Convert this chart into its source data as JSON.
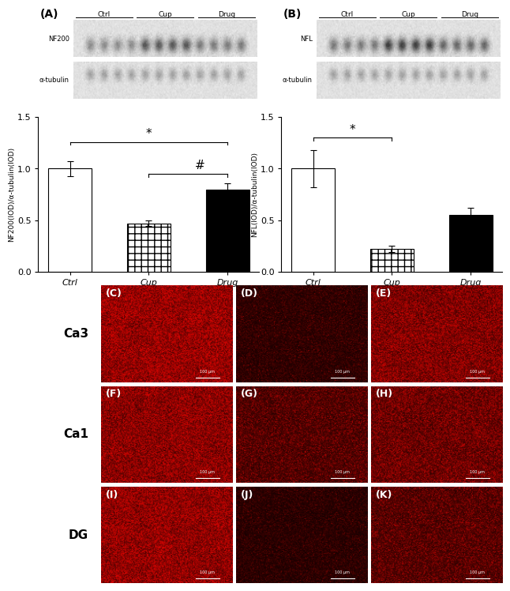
{
  "panel_A_values": [
    1.0,
    0.47,
    0.8
  ],
  "panel_A_errors": [
    0.07,
    0.03,
    0.06
  ],
  "panel_A_ylabel": "NF200(IOD)/α-tubulin(IOD)",
  "panel_B_values": [
    1.0,
    0.22,
    0.55
  ],
  "panel_B_errors": [
    0.18,
    0.03,
    0.07
  ],
  "panel_B_ylabel": "NFL(IOD)/α-tubulin(IOD)",
  "categories": [
    "Ctrl",
    "Cup",
    "Drug"
  ],
  "ylim": [
    0,
    1.5
  ],
  "yticks": [
    0.0,
    0.5,
    1.0,
    1.5
  ],
  "background_color": "#ffffff",
  "tick_fontsize": 8,
  "region_fontsize": 11,
  "fluor_label_fontsize": 9,
  "group_labels": [
    "Ctrl",
    "Cup",
    "Drug"
  ],
  "region_labels": [
    "Ca3",
    "Ca1",
    "DG"
  ],
  "fluor_configs": [
    {
      "label": "(C)",
      "mean_r": 0.72,
      "seed": 1
    },
    {
      "label": "(D)",
      "mean_r": 0.22,
      "seed": 2
    },
    {
      "label": "(E)",
      "mean_r": 0.6,
      "seed": 3
    },
    {
      "label": "(F)",
      "mean_r": 0.65,
      "seed": 4
    },
    {
      "label": "(G)",
      "mean_r": 0.38,
      "seed": 5
    },
    {
      "label": "(H)",
      "mean_r": 0.5,
      "seed": 6
    },
    {
      "label": "(I)",
      "mean_r": 0.68,
      "seed": 7
    },
    {
      "label": "(J)",
      "mean_r": 0.2,
      "seed": 8
    },
    {
      "label": "(K)",
      "mean_r": 0.4,
      "seed": 9
    }
  ]
}
